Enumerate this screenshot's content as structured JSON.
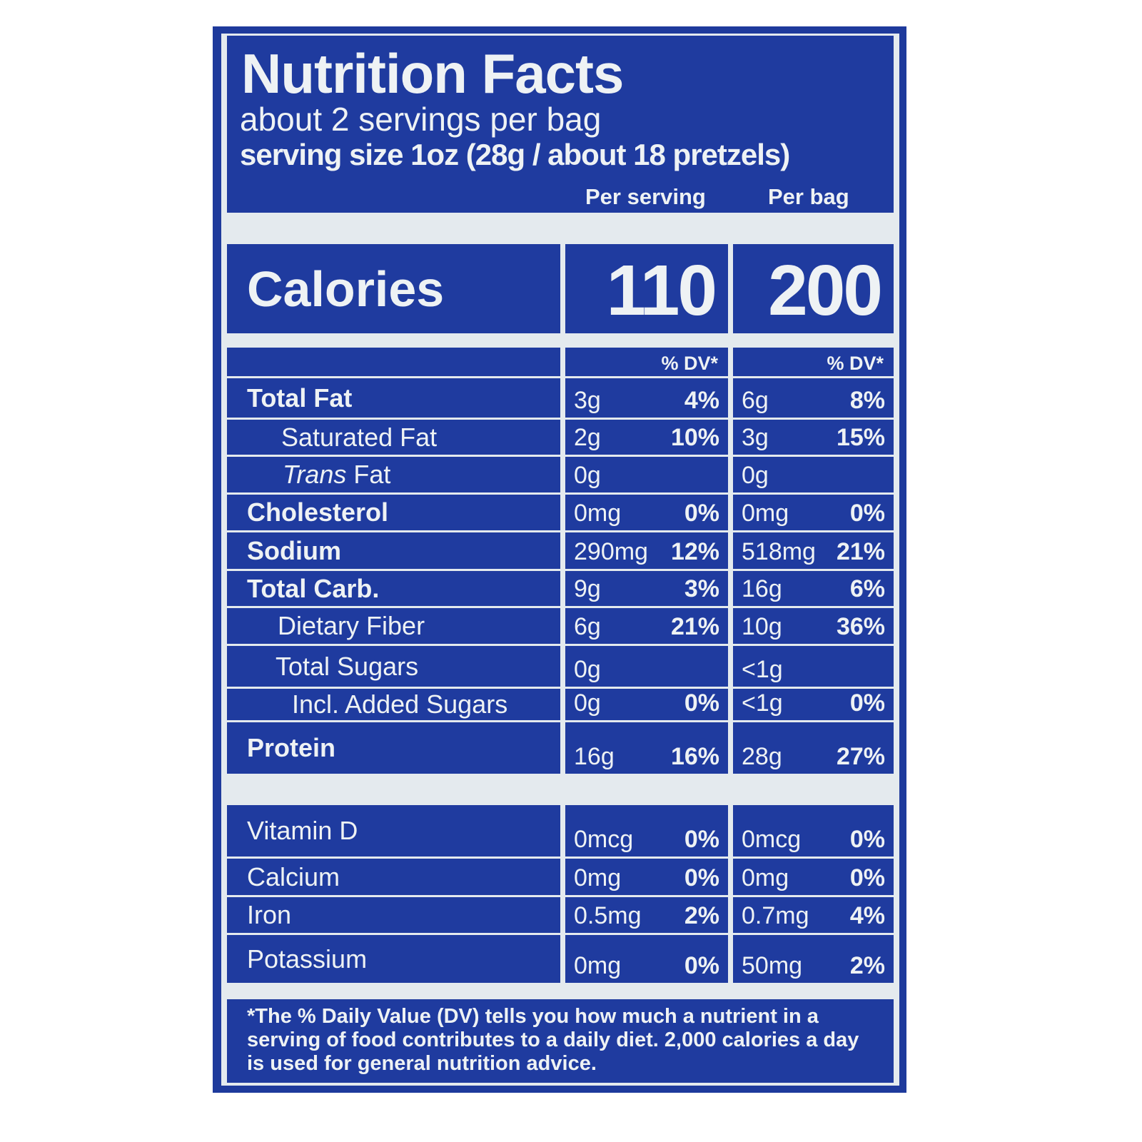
{
  "title": "Nutrition Facts",
  "servings": "about 2 servings per bag",
  "serving_size": "serving size 1oz (28g / about 18 pretzels)",
  "col_headers": {
    "per_serving": "Per serving",
    "per_bag": "Per bag"
  },
  "calories": {
    "label": "Calories",
    "per_serving": "110",
    "per_bag": "200"
  },
  "dv_header": "% DV*",
  "nutrients": [
    {
      "label": "Total Fat",
      "s_amt": "3g",
      "s_dv": "4%",
      "b_amt": "6g",
      "b_dv": "8%"
    },
    {
      "label": "Saturated Fat",
      "s_amt": "2g",
      "s_dv": "10%",
      "b_amt": "3g",
      "b_dv": "15%"
    },
    {
      "label": "Trans",
      "label_suffix": " Fat",
      "s_amt": "0g",
      "s_dv": "",
      "b_amt": "0g",
      "b_dv": ""
    },
    {
      "label": "Cholesterol",
      "s_amt": "0mg",
      "s_dv": "0%",
      "b_amt": "0mg",
      "b_dv": "0%"
    },
    {
      "label": "Sodium",
      "s_amt": "290mg",
      "s_dv": "12%",
      "b_amt": "518mg",
      "b_dv": "21%"
    },
    {
      "label": "Total Carb.",
      "s_amt": "9g",
      "s_dv": "3%",
      "b_amt": "16g",
      "b_dv": "6%"
    },
    {
      "label": "Dietary Fiber",
      "s_amt": "6g",
      "s_dv": "21%",
      "b_amt": "10g",
      "b_dv": "36%"
    },
    {
      "label": "Total Sugars",
      "s_amt": "0g",
      "s_dv": "",
      "b_amt": "<1g",
      "b_dv": ""
    },
    {
      "label": "Incl. Added Sugars",
      "s_amt": "0g",
      "s_dv": "0%",
      "b_amt": "<1g",
      "b_dv": "0%"
    },
    {
      "label": "Protein",
      "s_amt": "16g",
      "s_dv": "16%",
      "b_amt": "28g",
      "b_dv": "27%"
    }
  ],
  "vitamins": [
    {
      "label": "Vitamin D",
      "s_amt": "0mcg",
      "s_dv": "0%",
      "b_amt": "0mcg",
      "b_dv": "0%"
    },
    {
      "label": "Calcium",
      "s_amt": "0mg",
      "s_dv": "0%",
      "b_amt": "0mg",
      "b_dv": "0%"
    },
    {
      "label": "Iron",
      "s_amt": "0.5mg",
      "s_dv": "2%",
      "b_amt": "0.7mg",
      "b_dv": "4%"
    },
    {
      "label": "Potassium",
      "s_amt": "0mg",
      "s_dv": "0%",
      "b_amt": "50mg",
      "b_dv": "2%"
    }
  ],
  "footnote": "*The % Daily Value (DV) tells you how much a nutrient in a serving of food contributes to a daily diet. 2,000 calories a day is used for general nutrition advice.",
  "colors": {
    "label_blue": "#1f3b9f",
    "background": "#e4eaee",
    "text": "#eef2f4"
  }
}
